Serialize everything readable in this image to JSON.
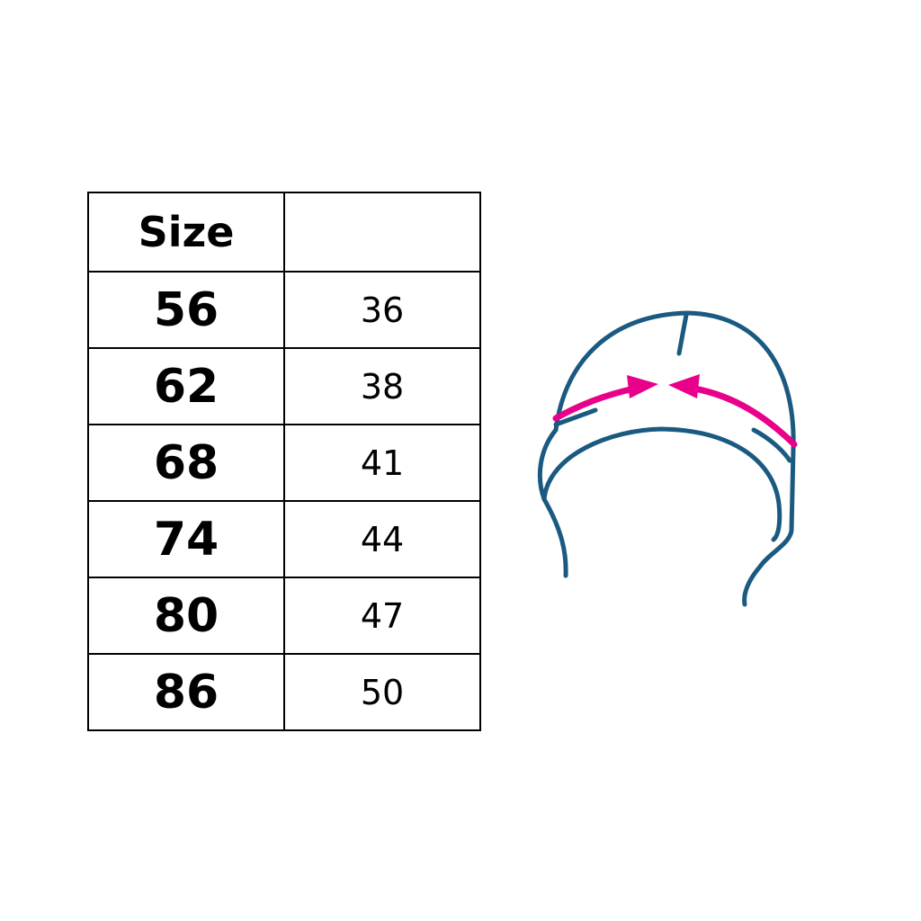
{
  "table": {
    "headers": [
      "Size",
      ""
    ],
    "rows": [
      {
        "size": "56",
        "value": "36"
      },
      {
        "size": "62",
        "value": "38"
      },
      {
        "size": "68",
        "value": "41"
      },
      {
        "size": "74",
        "value": "44"
      },
      {
        "size": "80",
        "value": "47"
      },
      {
        "size": "86",
        "value": "50"
      }
    ]
  },
  "illustration": {
    "subject": "hat-head-circumference",
    "outline_color": "#1a5a80",
    "arrow_color": "#e8008a"
  }
}
